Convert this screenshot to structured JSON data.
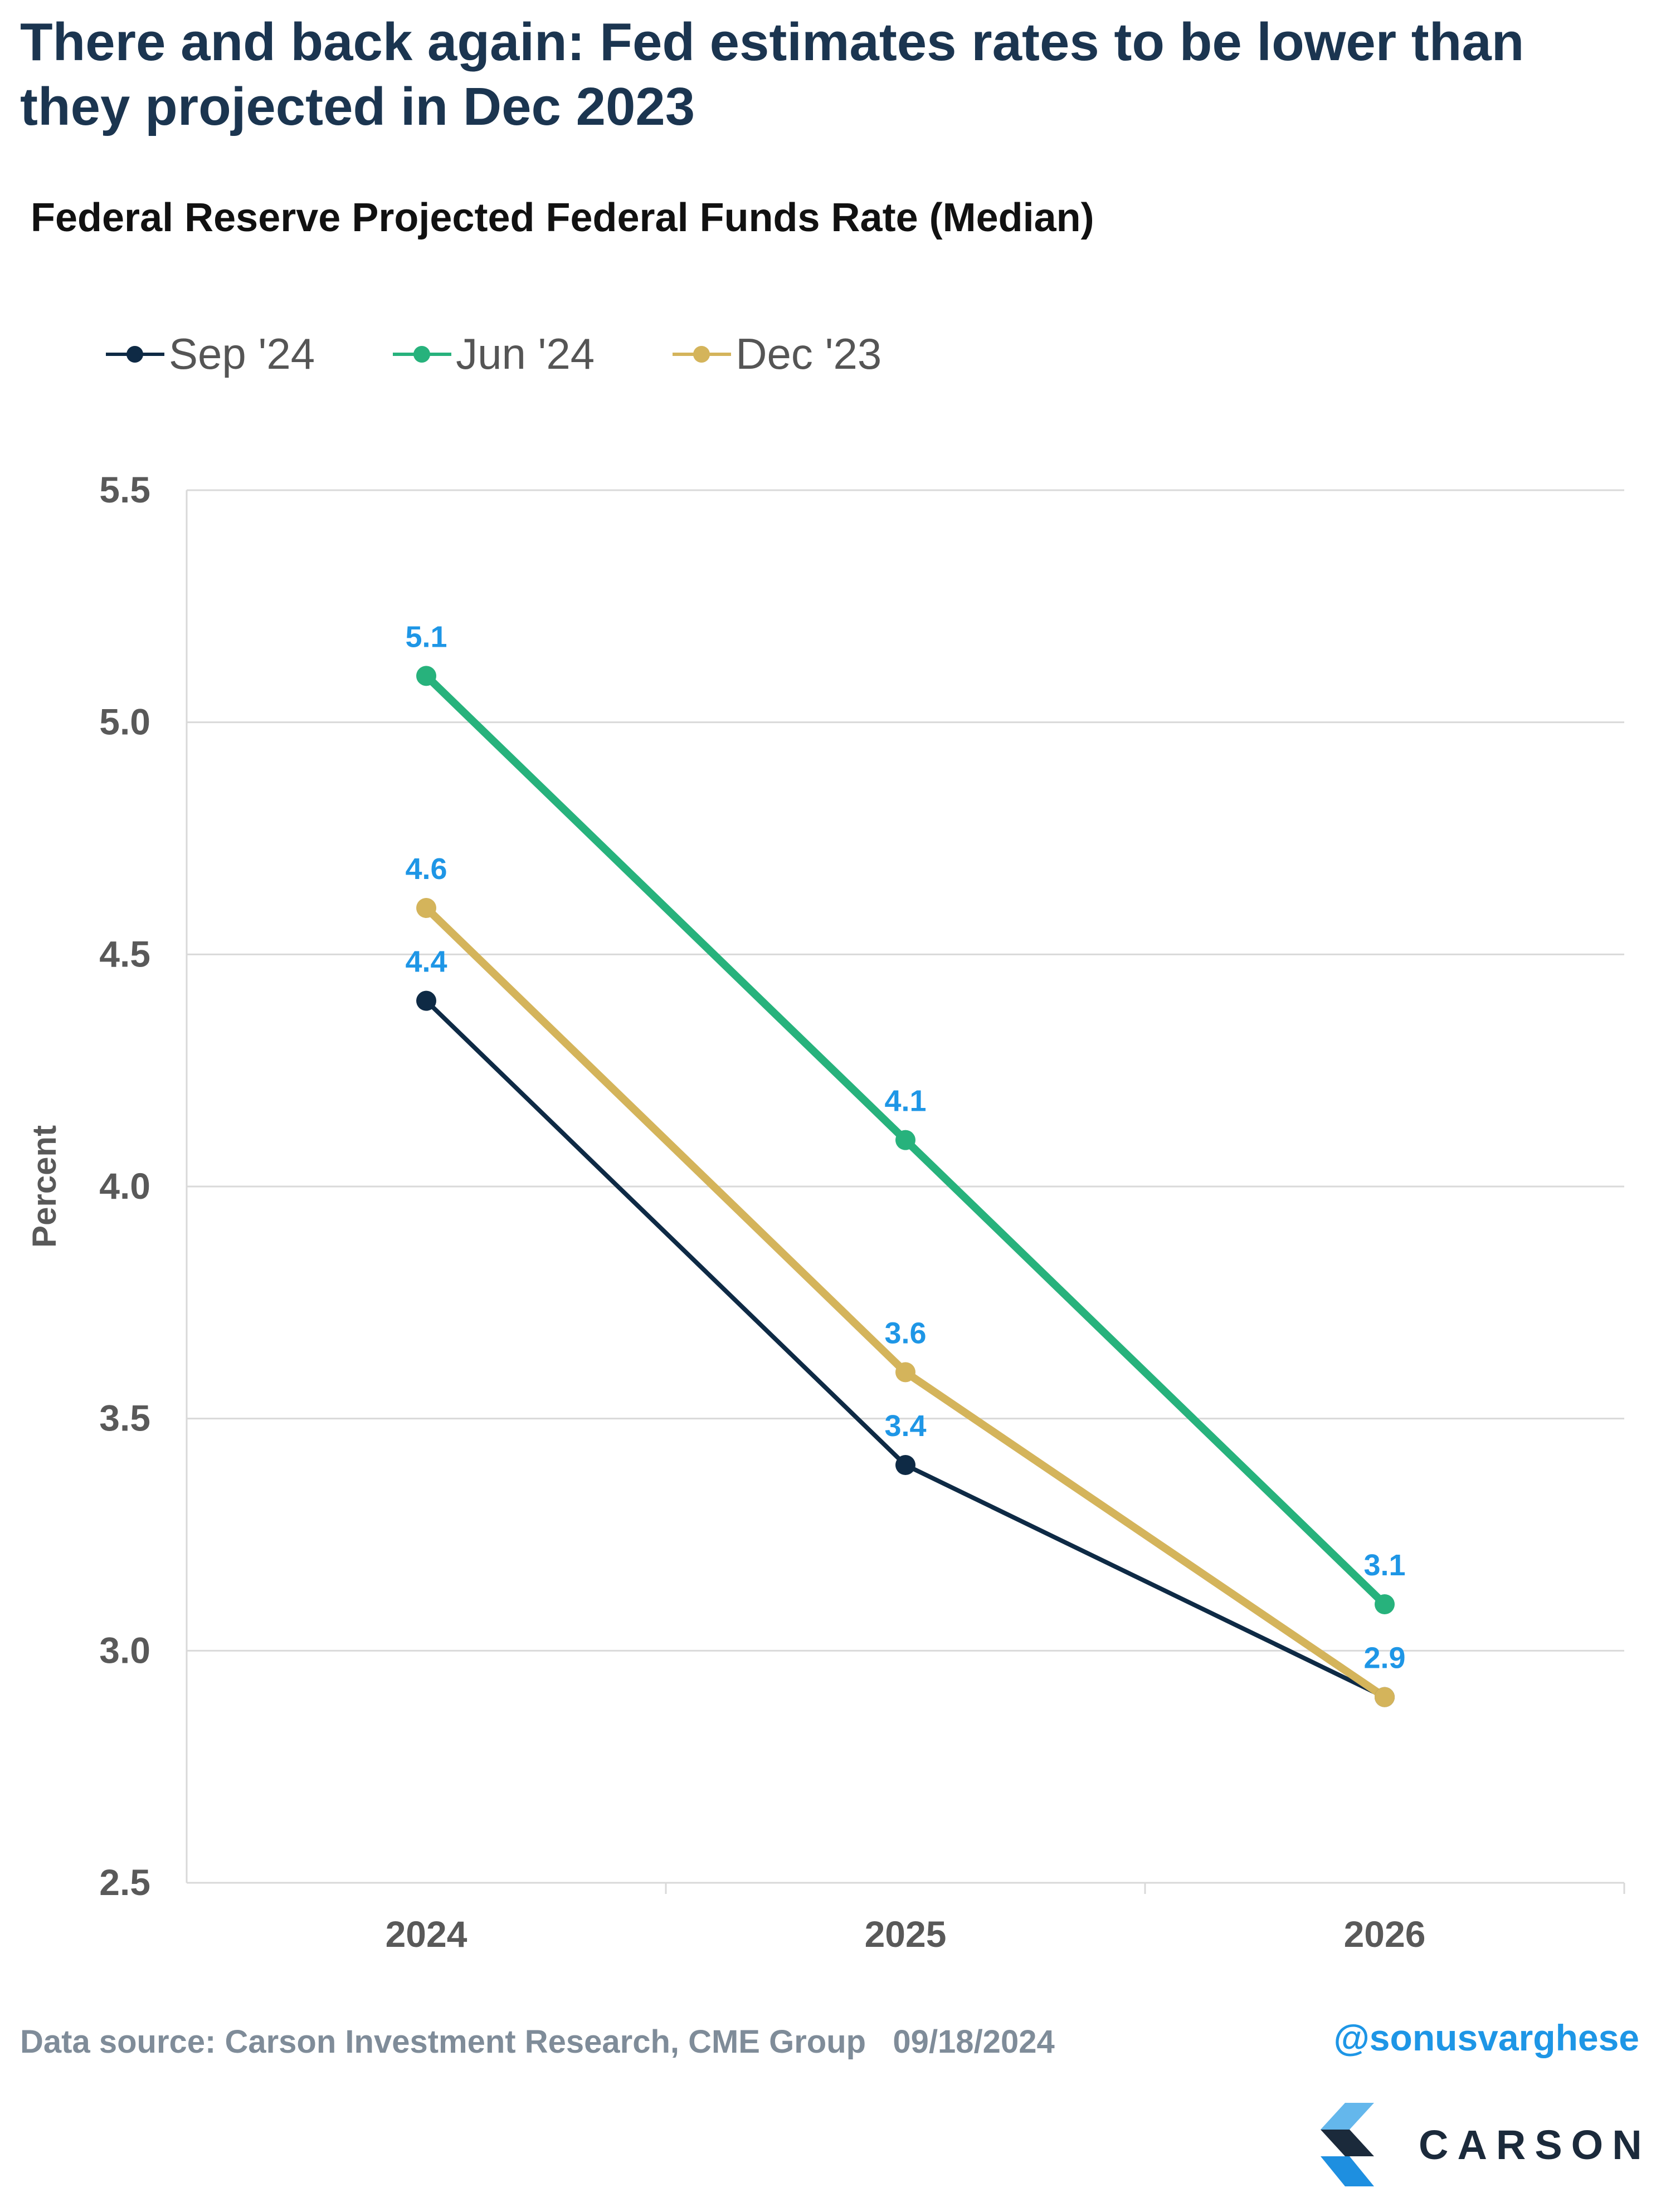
{
  "header": {
    "title": "There and back again: Fed estimates rates to be lower than they projected in Dec 2023",
    "subtitle": "Federal Reserve Projected Federal Funds Rate (Median)"
  },
  "chart_data": {
    "type": "line",
    "categories": [
      "2024",
      "2025",
      "2026"
    ],
    "series": [
      {
        "name": "Sep '24",
        "values": [
          4.4,
          3.4,
          2.9
        ],
        "color": "#0e2a45",
        "labels": [
          "4.4",
          "3.4",
          null
        ]
      },
      {
        "name": "Jun '24",
        "values": [
          5.1,
          4.1,
          3.1
        ],
        "color": "#27b27c",
        "labels": [
          "5.1",
          "4.1",
          "3.1"
        ]
      },
      {
        "name": "Dec '23",
        "values": [
          4.6,
          3.6,
          2.9
        ],
        "color": "#d4b45b",
        "labels": [
          "4.6",
          "3.6",
          "2.9"
        ]
      }
    ],
    "ylabel": "Percent",
    "xlabel": "",
    "ylim": [
      2.5,
      5.5
    ],
    "yticks": [
      "2.5",
      "3.0",
      "3.5",
      "4.0",
      "4.5",
      "5.0",
      "5.5"
    ],
    "grid": true,
    "legend_position": "top-left",
    "data_label_color": "#1e96e6"
  },
  "footer": {
    "source": "Data source: Carson Investment Research, CME Group   09/18/2024",
    "handle": "@sonusvarghese",
    "brand": "CARSON"
  }
}
